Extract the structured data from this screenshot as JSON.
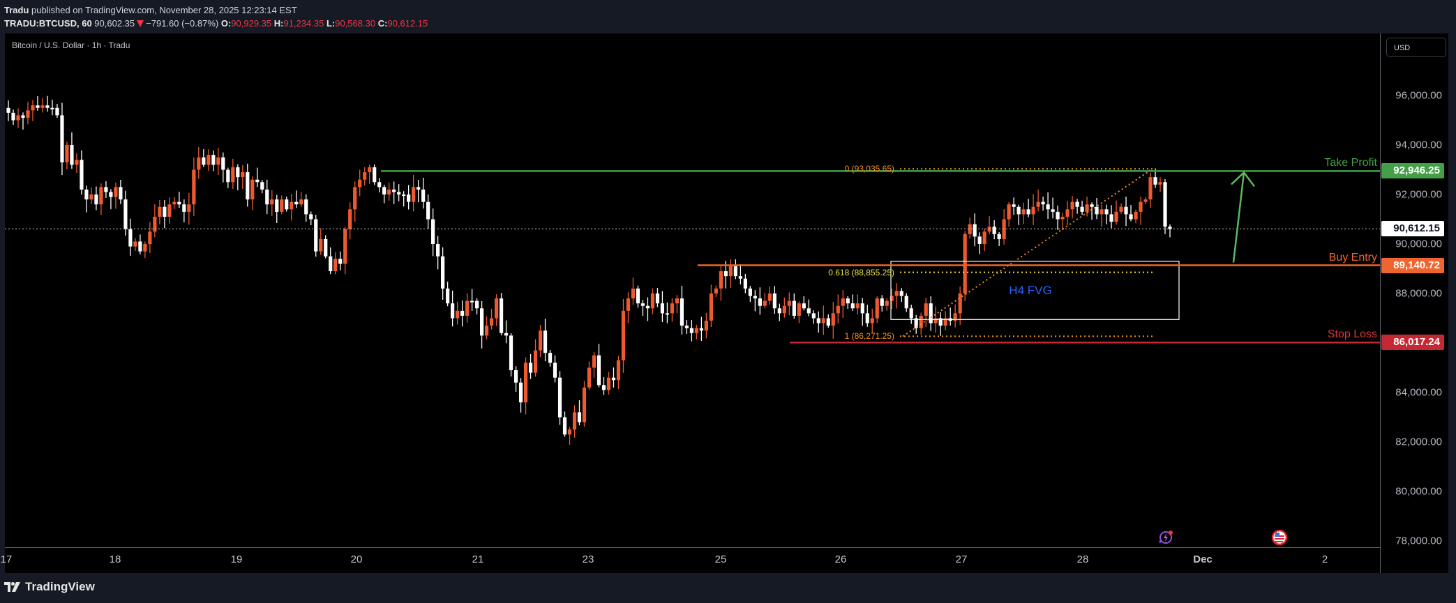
{
  "header": {
    "publisher": "Tradu",
    "published_text": "published on TradingView.com, November 28, 2025 12:23:14 EST",
    "symbol": "TRADU:BTCUSD, 60",
    "last": "90,602.35",
    "change": "−791.60 (−0.87%)",
    "o_label": "O:",
    "o": "90,929.35",
    "h_label": "H:",
    "h": "91,234.35",
    "l_label": "L:",
    "l": "90,568.30",
    "c_label": "C:",
    "c": "90,612.15"
  },
  "legend": "Bitcoin / U.S. Dollar · 1h · Tradu",
  "price_axis": {
    "currency": "USD",
    "ticks": [
      "96,000.00",
      "94,000.00",
      "92,000.00",
      "90,000.00",
      "88,000.00",
      "84,000.00",
      "82,000.00",
      "80,000.00",
      "78,000.00"
    ],
    "badges": {
      "take_profit": "92,946.25",
      "current": "90,612.15",
      "buy_entry": "89,140.72",
      "stop_loss": "86,017.24"
    }
  },
  "time_axis": {
    "ticks": [
      "17",
      "18",
      "19",
      "20",
      "21",
      "23",
      "25",
      "26",
      "27",
      "28",
      "Dec",
      "2"
    ]
  },
  "annotations": {
    "take_profit": "Take Profit",
    "buy_entry": "Buy Entry",
    "stop_loss": "Stop Loss",
    "fvg": "H4 FVG",
    "fib_0": "0 (93,035.65)",
    "fib_0618": "0.618 (88,855.25)",
    "fib_1": "1 (86,271.25)"
  },
  "colors": {
    "up": "#ee5a2f",
    "down": "#ffffff",
    "take_profit": "#43a047",
    "buy_entry": "#f0652f",
    "stop_loss": "#c62833",
    "fib": "#f7931a",
    "fib_0618": "#e8e04a",
    "fvg_text": "#2962ff"
  },
  "footer": {
    "brand": "TradingView"
  },
  "chart_data": {
    "type": "candlestick",
    "title": "Bitcoin / U.S. Dollar · 1h · Tradu",
    "xlabel": "",
    "ylabel": "USD",
    "ylim": [
      77600,
      97400
    ],
    "x_ticks": [
      "17",
      "18",
      "19",
      "20",
      "21",
      "23",
      "25",
      "26",
      "27",
      "28",
      "Dec",
      "2"
    ],
    "levels": {
      "take_profit": 92946.25,
      "buy_entry": 89140.72,
      "stop_loss": 86017.24,
      "last": 90612.15
    },
    "fib": {
      "0": 93035.65,
      "0.618": 88855.25,
      "1": 86271.25
    },
    "fvg_box": {
      "label": "H4 FVG",
      "top": 89300,
      "bottom": 86950
    },
    "closes": [
      95.3,
      95.0,
      95.2,
      95.1,
      95.4,
      95.6,
      95.5,
      95.6,
      95.5,
      95.5,
      95.2,
      93.3,
      94.0,
      93.2,
      93.4,
      92.2,
      91.8,
      92.0,
      91.6,
      92.3,
      92.1,
      91.9,
      92.3,
      91.8,
      90.6,
      89.9,
      90.1,
      89.7,
      90.0,
      90.5,
      91.1,
      91.5,
      91.1,
      91.6,
      91.7,
      91.6,
      91.3,
      91.6,
      93.0,
      93.5,
      93.2,
      93.6,
      93.2,
      93.5,
      93.0,
      92.5,
      93.1,
      92.7,
      92.9,
      91.8,
      92.6,
      92.5,
      92.2,
      91.6,
      91.8,
      91.3,
      91.8,
      91.4,
      91.7,
      91.6,
      91.8,
      91.2,
      91.0,
      89.7,
      90.2,
      89.5,
      88.9,
      89.4,
      89.2,
      90.6,
      91.4,
      92.3,
      92.6,
      92.9,
      93.1,
      92.5,
      92.3,
      92.0,
      92.2,
      92.1,
      92.0,
      92.0,
      91.7,
      92.3,
      92.2,
      91.7,
      91.0,
      90.0,
      89.5,
      88.2,
      87.6,
      87.0,
      87.3,
      87.1,
      87.7,
      87.7,
      87.4,
      86.3,
      86.7,
      87.0,
      87.8,
      86.4,
      86.3,
      84.9,
      84.4,
      83.6,
      85.2,
      84.8,
      85.7,
      86.5,
      85.6,
      85.2,
      84.6,
      83.0,
      82.3,
      82.5,
      83.2,
      82.8,
      84.2,
      85.0,
      85.5,
      84.3,
      84.1,
      84.6,
      84.5,
      85.3,
      87.3,
      87.8,
      88.2,
      87.6,
      87.5,
      87.4,
      88.0,
      87.6,
      87.2,
      87.2,
      87.6,
      87.8,
      86.7,
      86.6,
      86.4,
      86.6,
      86.5,
      86.9,
      88.0,
      88.2,
      88.9,
      88.7,
      89.1,
      88.7,
      88.6,
      88.2,
      87.9,
      87.8,
      87.5,
      87.7,
      88.0,
      87.4,
      87.2,
      87.5,
      87.7,
      87.1,
      87.6,
      87.4,
      87.2,
      87.0,
      86.8,
      87.0,
      86.7,
      87.2,
      87.5,
      87.8,
      87.6,
      87.4,
      87.6,
      87.2,
      86.8,
      87.0,
      87.8,
      87.5,
      87.7,
      87.9,
      88.1,
      87.9,
      87.4,
      87.0,
      86.6,
      87.1,
      87.6,
      86.8,
      87.0,
      86.7,
      87.0,
      86.9,
      87.2,
      88.0,
      90.4,
      90.8,
      90.3,
      90.0,
      90.5,
      90.7,
      90.4,
      90.2,
      91.0,
      91.6,
      91.5,
      91.2,
      91.4,
      91.2,
      91.5,
      91.7,
      91.6,
      91.4,
      91.3,
      91.0,
      91.1,
      91.4,
      91.7,
      91.5,
      91.3,
      91.6,
      91.5,
      91.2,
      91.4,
      91.2,
      90.9,
      91.3,
      91.5,
      91.2,
      91.0,
      91.3,
      91.7,
      91.8,
      92.7,
      92.4,
      92.5,
      90.7,
      90.6
    ]
  }
}
